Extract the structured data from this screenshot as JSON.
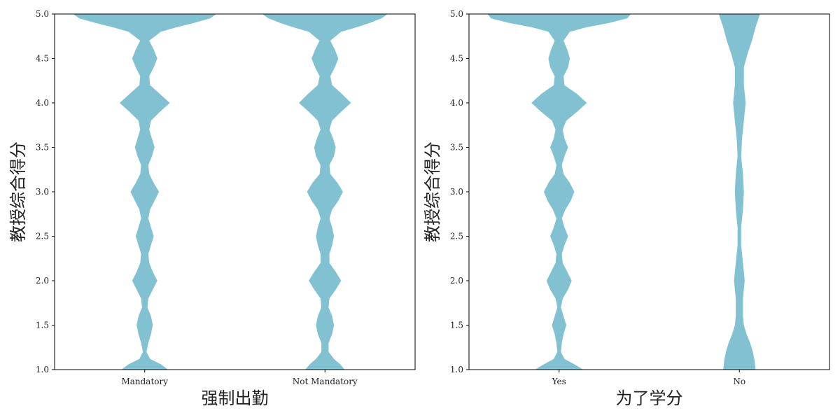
{
  "chart_data": [
    {
      "type": "violin",
      "xlabel": "强制出勤",
      "ylabel": "教授综合得分",
      "ylim": [
        1.0,
        5.0
      ],
      "yticks": [
        "1.0",
        "1.5",
        "2.0",
        "2.5",
        "3.0",
        "3.5",
        "4.0",
        "4.5",
        "5.0"
      ],
      "categories": [
        "Mandatory",
        "Not Mandatory"
      ],
      "color": "#82c1d2",
      "violins": [
        {
          "category": "Mandatory",
          "profile": [
            {
              "y": 1.0,
              "w": 0.26
            },
            {
              "y": 1.06,
              "w": 0.18
            },
            {
              "y": 1.12,
              "w": 0.06
            },
            {
              "y": 1.2,
              "w": 0.02
            },
            {
              "y": 1.3,
              "w": 0.04
            },
            {
              "y": 1.4,
              "w": 0.07
            },
            {
              "y": 1.5,
              "w": 0.09
            },
            {
              "y": 1.6,
              "w": 0.07
            },
            {
              "y": 1.7,
              "w": 0.03
            },
            {
              "y": 1.8,
              "w": 0.04
            },
            {
              "y": 1.9,
              "w": 0.09
            },
            {
              "y": 2.0,
              "w": 0.14
            },
            {
              "y": 2.1,
              "w": 0.09
            },
            {
              "y": 2.2,
              "w": 0.05
            },
            {
              "y": 2.3,
              "w": 0.04
            },
            {
              "y": 2.4,
              "w": 0.07
            },
            {
              "y": 2.5,
              "w": 0.1
            },
            {
              "y": 2.6,
              "w": 0.07
            },
            {
              "y": 2.7,
              "w": 0.04
            },
            {
              "y": 2.8,
              "w": 0.06
            },
            {
              "y": 2.9,
              "w": 0.11
            },
            {
              "y": 3.0,
              "w": 0.16
            },
            {
              "y": 3.1,
              "w": 0.1
            },
            {
              "y": 3.2,
              "w": 0.05
            },
            {
              "y": 3.3,
              "w": 0.04
            },
            {
              "y": 3.4,
              "w": 0.08
            },
            {
              "y": 3.5,
              "w": 0.11
            },
            {
              "y": 3.6,
              "w": 0.08
            },
            {
              "y": 3.7,
              "w": 0.05
            },
            {
              "y": 3.8,
              "w": 0.07
            },
            {
              "y": 3.9,
              "w": 0.17
            },
            {
              "y": 4.0,
              "w": 0.28
            },
            {
              "y": 4.1,
              "w": 0.17
            },
            {
              "y": 4.2,
              "w": 0.06
            },
            {
              "y": 4.3,
              "w": 0.05
            },
            {
              "y": 4.4,
              "w": 0.1
            },
            {
              "y": 4.5,
              "w": 0.14
            },
            {
              "y": 4.6,
              "w": 0.1
            },
            {
              "y": 4.7,
              "w": 0.05
            },
            {
              "y": 4.8,
              "w": 0.18
            },
            {
              "y": 4.85,
              "w": 0.35
            },
            {
              "y": 4.9,
              "w": 0.55
            },
            {
              "y": 4.95,
              "w": 0.73
            },
            {
              "y": 5.0,
              "w": 0.8
            }
          ]
        },
        {
          "category": "Not Mandatory",
          "profile": [
            {
              "y": 1.0,
              "w": 0.22
            },
            {
              "y": 1.06,
              "w": 0.17
            },
            {
              "y": 1.12,
              "w": 0.1
            },
            {
              "y": 1.2,
              "w": 0.04
            },
            {
              "y": 1.3,
              "w": 0.04
            },
            {
              "y": 1.4,
              "w": 0.08
            },
            {
              "y": 1.5,
              "w": 0.1
            },
            {
              "y": 1.6,
              "w": 0.08
            },
            {
              "y": 1.7,
              "w": 0.04
            },
            {
              "y": 1.8,
              "w": 0.05
            },
            {
              "y": 1.9,
              "w": 0.12
            },
            {
              "y": 2.0,
              "w": 0.18
            },
            {
              "y": 2.1,
              "w": 0.12
            },
            {
              "y": 2.2,
              "w": 0.05
            },
            {
              "y": 2.3,
              "w": 0.05
            },
            {
              "y": 2.4,
              "w": 0.08
            },
            {
              "y": 2.5,
              "w": 0.1
            },
            {
              "y": 2.6,
              "w": 0.08
            },
            {
              "y": 2.7,
              "w": 0.05
            },
            {
              "y": 2.8,
              "w": 0.08
            },
            {
              "y": 2.9,
              "w": 0.15
            },
            {
              "y": 3.0,
              "w": 0.2
            },
            {
              "y": 3.1,
              "w": 0.14
            },
            {
              "y": 3.2,
              "w": 0.06
            },
            {
              "y": 3.3,
              "w": 0.05
            },
            {
              "y": 3.4,
              "w": 0.1
            },
            {
              "y": 3.5,
              "w": 0.12
            },
            {
              "y": 3.6,
              "w": 0.09
            },
            {
              "y": 3.7,
              "w": 0.05
            },
            {
              "y": 3.8,
              "w": 0.08
            },
            {
              "y": 3.9,
              "w": 0.18
            },
            {
              "y": 4.0,
              "w": 0.29
            },
            {
              "y": 4.1,
              "w": 0.19
            },
            {
              "y": 4.2,
              "w": 0.08
            },
            {
              "y": 4.3,
              "w": 0.06
            },
            {
              "y": 4.4,
              "w": 0.11
            },
            {
              "y": 4.5,
              "w": 0.15
            },
            {
              "y": 4.6,
              "w": 0.11
            },
            {
              "y": 4.7,
              "w": 0.06
            },
            {
              "y": 4.8,
              "w": 0.18
            },
            {
              "y": 4.85,
              "w": 0.35
            },
            {
              "y": 4.9,
              "w": 0.5
            },
            {
              "y": 4.95,
              "w": 0.63
            },
            {
              "y": 5.0,
              "w": 0.7
            }
          ]
        }
      ]
    },
    {
      "type": "violin",
      "xlabel": "为了学分",
      "ylabel": "教授综合得分",
      "ylim": [
        1.0,
        5.0
      ],
      "yticks": [
        "1.0",
        "1.5",
        "2.0",
        "2.5",
        "3.0",
        "3.5",
        "4.0",
        "4.5",
        "5.0"
      ],
      "categories": [
        "Yes",
        "No"
      ],
      "color": "#82c1d2",
      "violins": [
        {
          "category": "Yes",
          "profile": [
            {
              "y": 1.0,
              "w": 0.27
            },
            {
              "y": 1.06,
              "w": 0.17
            },
            {
              "y": 1.12,
              "w": 0.06
            },
            {
              "y": 1.2,
              "w": 0.02
            },
            {
              "y": 1.3,
              "w": 0.03
            },
            {
              "y": 1.4,
              "w": 0.05
            },
            {
              "y": 1.5,
              "w": 0.08
            },
            {
              "y": 1.6,
              "w": 0.05
            },
            {
              "y": 1.7,
              "w": 0.02
            },
            {
              "y": 1.8,
              "w": 0.04
            },
            {
              "y": 1.9,
              "w": 0.1
            },
            {
              "y": 2.0,
              "w": 0.14
            },
            {
              "y": 2.1,
              "w": 0.09
            },
            {
              "y": 2.2,
              "w": 0.04
            },
            {
              "y": 2.3,
              "w": 0.03
            },
            {
              "y": 2.4,
              "w": 0.06
            },
            {
              "y": 2.5,
              "w": 0.1
            },
            {
              "y": 2.6,
              "w": 0.06
            },
            {
              "y": 2.7,
              "w": 0.03
            },
            {
              "y": 2.8,
              "w": 0.07
            },
            {
              "y": 2.9,
              "w": 0.13
            },
            {
              "y": 3.0,
              "w": 0.17
            },
            {
              "y": 3.1,
              "w": 0.12
            },
            {
              "y": 3.2,
              "w": 0.05
            },
            {
              "y": 3.3,
              "w": 0.03
            },
            {
              "y": 3.4,
              "w": 0.06
            },
            {
              "y": 3.5,
              "w": 0.1
            },
            {
              "y": 3.6,
              "w": 0.06
            },
            {
              "y": 3.7,
              "w": 0.04
            },
            {
              "y": 3.8,
              "w": 0.08
            },
            {
              "y": 3.9,
              "w": 0.2
            },
            {
              "y": 4.0,
              "w": 0.31
            },
            {
              "y": 4.1,
              "w": 0.2
            },
            {
              "y": 4.2,
              "w": 0.06
            },
            {
              "y": 4.3,
              "w": 0.05
            },
            {
              "y": 4.4,
              "w": 0.1
            },
            {
              "y": 4.5,
              "w": 0.12
            },
            {
              "y": 4.6,
              "w": 0.09
            },
            {
              "y": 4.7,
              "w": 0.05
            },
            {
              "y": 4.8,
              "w": 0.12
            },
            {
              "y": 4.85,
              "w": 0.3
            },
            {
              "y": 4.9,
              "w": 0.56
            },
            {
              "y": 4.95,
              "w": 0.76
            },
            {
              "y": 5.0,
              "w": 0.8
            }
          ]
        },
        {
          "category": "No",
          "profile": [
            {
              "y": 1.0,
              "w": 0.18
            },
            {
              "y": 1.1,
              "w": 0.17
            },
            {
              "y": 1.2,
              "w": 0.15
            },
            {
              "y": 1.3,
              "w": 0.12
            },
            {
              "y": 1.4,
              "w": 0.08
            },
            {
              "y": 1.5,
              "w": 0.05
            },
            {
              "y": 1.6,
              "w": 0.04
            },
            {
              "y": 1.8,
              "w": 0.04
            },
            {
              "y": 2.0,
              "w": 0.06
            },
            {
              "y": 2.2,
              "w": 0.04
            },
            {
              "y": 2.4,
              "w": 0.02
            },
            {
              "y": 2.6,
              "w": 0.02
            },
            {
              "y": 2.8,
              "w": 0.04
            },
            {
              "y": 3.0,
              "w": 0.05
            },
            {
              "y": 3.2,
              "w": 0.04
            },
            {
              "y": 3.4,
              "w": 0.02
            },
            {
              "y": 3.6,
              "w": 0.03
            },
            {
              "y": 3.8,
              "w": 0.05
            },
            {
              "y": 4.0,
              "w": 0.07
            },
            {
              "y": 4.2,
              "w": 0.05
            },
            {
              "y": 4.4,
              "w": 0.05
            },
            {
              "y": 4.55,
              "w": 0.09
            },
            {
              "y": 4.7,
              "w": 0.14
            },
            {
              "y": 4.85,
              "w": 0.18
            },
            {
              "y": 5.0,
              "w": 0.23
            }
          ]
        }
      ]
    }
  ]
}
